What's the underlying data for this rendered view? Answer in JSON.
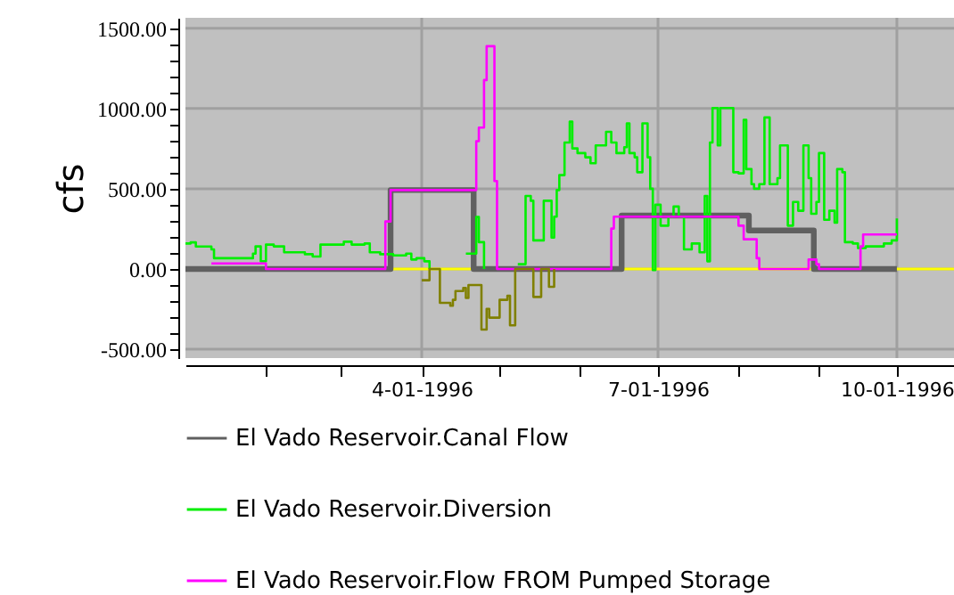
{
  "chart_data": {
    "type": "step",
    "ylabel": "cfs",
    "xlim": [
      "1996-01-01",
      "1996-10-23"
    ],
    "xticks": [
      {
        "value": "1996-02-01",
        "label": null
      },
      {
        "value": "1996-03-01",
        "label": null
      },
      {
        "value": "1996-04-01",
        "label": "4-01-1996"
      },
      {
        "value": "1996-05-01",
        "label": null
      },
      {
        "value": "1996-06-01",
        "label": null
      },
      {
        "value": "1996-07-01",
        "label": "7-01-1996"
      },
      {
        "value": "1996-08-01",
        "label": null
      },
      {
        "value": "1996-09-01",
        "label": null
      },
      {
        "value": "1996-10-01",
        "label": "10-01-1996"
      }
    ],
    "ylim": [
      -555,
      1565
    ],
    "yticks": [
      {
        "value": -500,
        "label": "-500.00"
      },
      {
        "value": -400,
        "label": null
      },
      {
        "value": -300,
        "label": null
      },
      {
        "value": -200,
        "label": null
      },
      {
        "value": -100,
        "label": null
      },
      {
        "value": 0,
        "label": "0.00"
      },
      {
        "value": 100,
        "label": null
      },
      {
        "value": 200,
        "label": null
      },
      {
        "value": 300,
        "label": null
      },
      {
        "value": 400,
        "label": null
      },
      {
        "value": 500,
        "label": "500.00"
      },
      {
        "value": 600,
        "label": null
      },
      {
        "value": 700,
        "label": null
      },
      {
        "value": 800,
        "label": null
      },
      {
        "value": 900,
        "label": null
      },
      {
        "value": 1000,
        "label": "1000.00"
      },
      {
        "value": 1100,
        "label": null
      },
      {
        "value": 1200,
        "label": null
      },
      {
        "value": 1300,
        "label": null
      },
      {
        "value": 1400,
        "label": null
      },
      {
        "value": 1500,
        "label": "1500.00"
      }
    ],
    "grid": true,
    "legend": "bottom",
    "ref_lines": [
      {
        "axis": "y",
        "value": 0,
        "color": "#ffff00"
      }
    ],
    "series": [
      {
        "name": "El Vado Reservoir.Canal Flow",
        "color": "#606060",
        "x": [
          "1996-01-01",
          "1996-03-20",
          "1996-04-21",
          "1996-06-17",
          "1996-08-04",
          "1996-08-05",
          "1996-08-30",
          "1996-10-01"
        ],
        "values": [
          0,
          492,
          0,
          333,
          333,
          240,
          0,
          0
        ]
      },
      {
        "name": "El Vado Reservoir.Diversion",
        "color": "#00ee00",
        "x": [
          "1996-01-01",
          "1996-01-03",
          "1996-01-05",
          "1996-01-11",
          "1996-01-12",
          "1996-01-21",
          "1996-01-27",
          "1996-01-28",
          "1996-01-30",
          "1996-02-01",
          "1996-02-04",
          "1996-02-08",
          "1996-02-11",
          "1996-02-16",
          "1996-02-19",
          "1996-02-22",
          "1996-02-27",
          "1996-03-02",
          "1996-03-05",
          "1996-03-10",
          "1996-03-12",
          "1996-03-16",
          "1996-03-21",
          "1996-03-26",
          "1996-03-28",
          "1996-03-30",
          "1996-04-02",
          "1996-04-04",
          "1996-04-10",
          "1996-04-18",
          "1996-04-22",
          "1996-04-23",
          "1996-04-25",
          "1996-04-28",
          "1996-05-08",
          "1996-05-11",
          "1996-05-13",
          "1996-05-14",
          "1996-05-16",
          "1996-05-18",
          "1996-05-20",
          "1996-05-21",
          "1996-05-22",
          "1996-05-23",
          "1996-05-24",
          "1996-05-26",
          "1996-05-28",
          "1996-05-29",
          "1996-05-31",
          "1996-06-03",
          "1996-06-05",
          "1996-06-07",
          "1996-06-11",
          "1996-06-13",
          "1996-06-15",
          "1996-06-18",
          "1996-06-19",
          "1996-06-20",
          "1996-06-22",
          "1996-06-23",
          "1996-06-25",
          "1996-06-27",
          "1996-06-28",
          "1996-06-29",
          "1996-06-30",
          "1996-07-02",
          "1996-07-05",
          "1996-07-07",
          "1996-07-09",
          "1996-07-11",
          "1996-07-14",
          "1996-07-17",
          "1996-07-19",
          "1996-07-20",
          "1996-07-21",
          "1996-07-22",
          "1996-07-24",
          "1996-07-25",
          "1996-07-29",
          "1996-07-30",
          "1996-08-01",
          "1996-08-03",
          "1996-08-04",
          "1996-08-06",
          "1996-08-07",
          "1996-08-09",
          "1996-08-11",
          "1996-08-13",
          "1996-08-16",
          "1996-08-17",
          "1996-08-20",
          "1996-08-22",
          "1996-08-24",
          "1996-08-26",
          "1996-08-28",
          "1996-08-29",
          "1996-08-31",
          "1996-09-01",
          "1996-09-03",
          "1996-09-05",
          "1996-09-07",
          "1996-09-08",
          "1996-09-10",
          "1996-09-11",
          "1996-09-14",
          "1996-09-16",
          "1996-09-19",
          "1996-09-23",
          "1996-09-26",
          "1996-09-29",
          "1996-10-01"
        ],
        "values": [
          159,
          166,
          140,
          122,
          67,
          67,
          96,
          141,
          48,
          152,
          141,
          104,
          104,
          92,
          78,
          152,
          152,
          170,
          152,
          159,
          104,
          92,
          85,
          96,
          59,
          67,
          48,
          0,
          null,
          96,
          325,
          167,
          0,
          null,
          30,
          455,
          425,
          178,
          178,
          425,
          425,
          196,
          326,
          492,
          585,
          788,
          918,
          751,
          722,
          696,
          659,
          770,
          855,
          788,
          722,
          759,
          907,
          722,
          696,
          603,
          907,
          696,
          500,
          -7,
          400,
          270,
          326,
          389,
          326,
          122,
          159,
          104,
          455,
          48,
          788,
          1003,
          770,
          1003,
          1003,
          603,
          596,
          929,
          622,
          529,
          500,
          529,
          944,
          529,
          566,
          770,
          270,
          418,
          363,
          770,
          566,
          344,
          418,
          722,
          307,
          363,
          289,
          622,
          603,
          167,
          159,
          130,
          141,
          141,
          159,
          178,
          315
        ]
      },
      {
        "name": "El Vado Reservoir.Flow FROM Pumped Storage",
        "color": "#ff00ff",
        "x": [
          "1996-01-11",
          "1996-02-01",
          "1996-03-18",
          "1996-03-20",
          "1996-04-21",
          "1996-04-22",
          "1996-04-23",
          "1996-04-25",
          "1996-04-26",
          "1996-04-29",
          "1996-04-30",
          "1996-06-13",
          "1996-06-14",
          "1996-08-01",
          "1996-08-03",
          "1996-08-08",
          "1996-08-09",
          "1996-08-28",
          "1996-08-31",
          "1996-09-01",
          "1996-09-17",
          "1996-09-18",
          "1996-10-01"
        ],
        "values": [
          35,
          0,
          296,
          492,
          492,
          796,
          881,
          1177,
          1388,
          548,
          0,
          252,
          326,
          270,
          185,
          67,
          0,
          59,
          30,
          0,
          141,
          215,
          215
        ]
      },
      {
        "color": "#808000",
        "x": [
          "1996-04-01",
          "1996-04-04",
          "1996-04-08",
          "1996-04-10",
          "1996-04-12",
          "1996-04-13",
          "1996-04-14",
          "1996-04-17",
          "1996-04-18",
          "1996-04-19",
          "1996-04-24",
          "1996-04-26",
          "1996-04-27",
          "1996-04-30",
          "1996-05-01",
          "1996-05-04",
          "1996-05-05",
          "1996-05-07",
          "1996-05-14",
          "1996-05-17",
          "1996-05-20",
          "1996-05-22"
        ],
        "values": [
          -70,
          0,
          -211,
          -211,
          -229,
          -192,
          -137,
          -118,
          -180,
          -100,
          -377,
          -248,
          -303,
          -303,
          -192,
          -167,
          -351,
          0,
          -174,
          0,
          -111,
          0
        ]
      }
    ]
  }
}
